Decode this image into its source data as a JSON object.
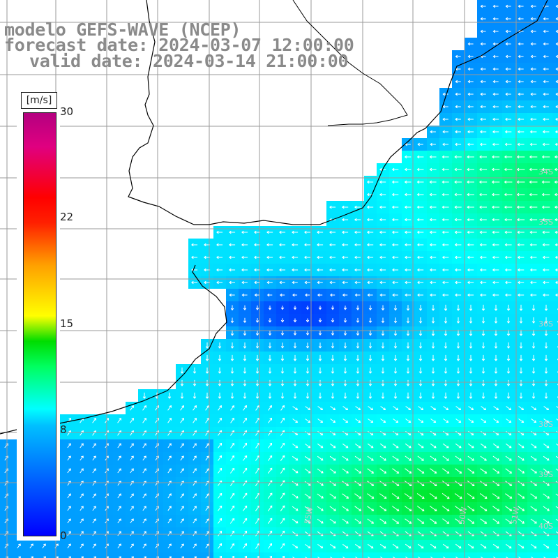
{
  "title": {
    "line1": "modelo GEFS-WAVE (NCEP)",
    "line2": "forecast date: 2024-03-07 12:00:00",
    "line3": "valid date: 2024-03-14 21:00:00"
  },
  "colorbar": {
    "unit": "[m/s]",
    "ticks": [
      "30",
      "22",
      "15",
      "8",
      "0"
    ],
    "range": [
      0,
      30
    ]
  },
  "map": {
    "variable": "wind speed",
    "arrow_color": "#ffffff",
    "land_color": "#ffffff",
    "coast_color": "#000000",
    "grid_color": "#9a9a9a",
    "lat_labels": [
      "34S",
      "35S",
      "36S",
      "38S",
      "39S",
      "40S"
    ],
    "lon_labels": [
      "55W",
      "50W",
      "51W"
    ]
  }
}
